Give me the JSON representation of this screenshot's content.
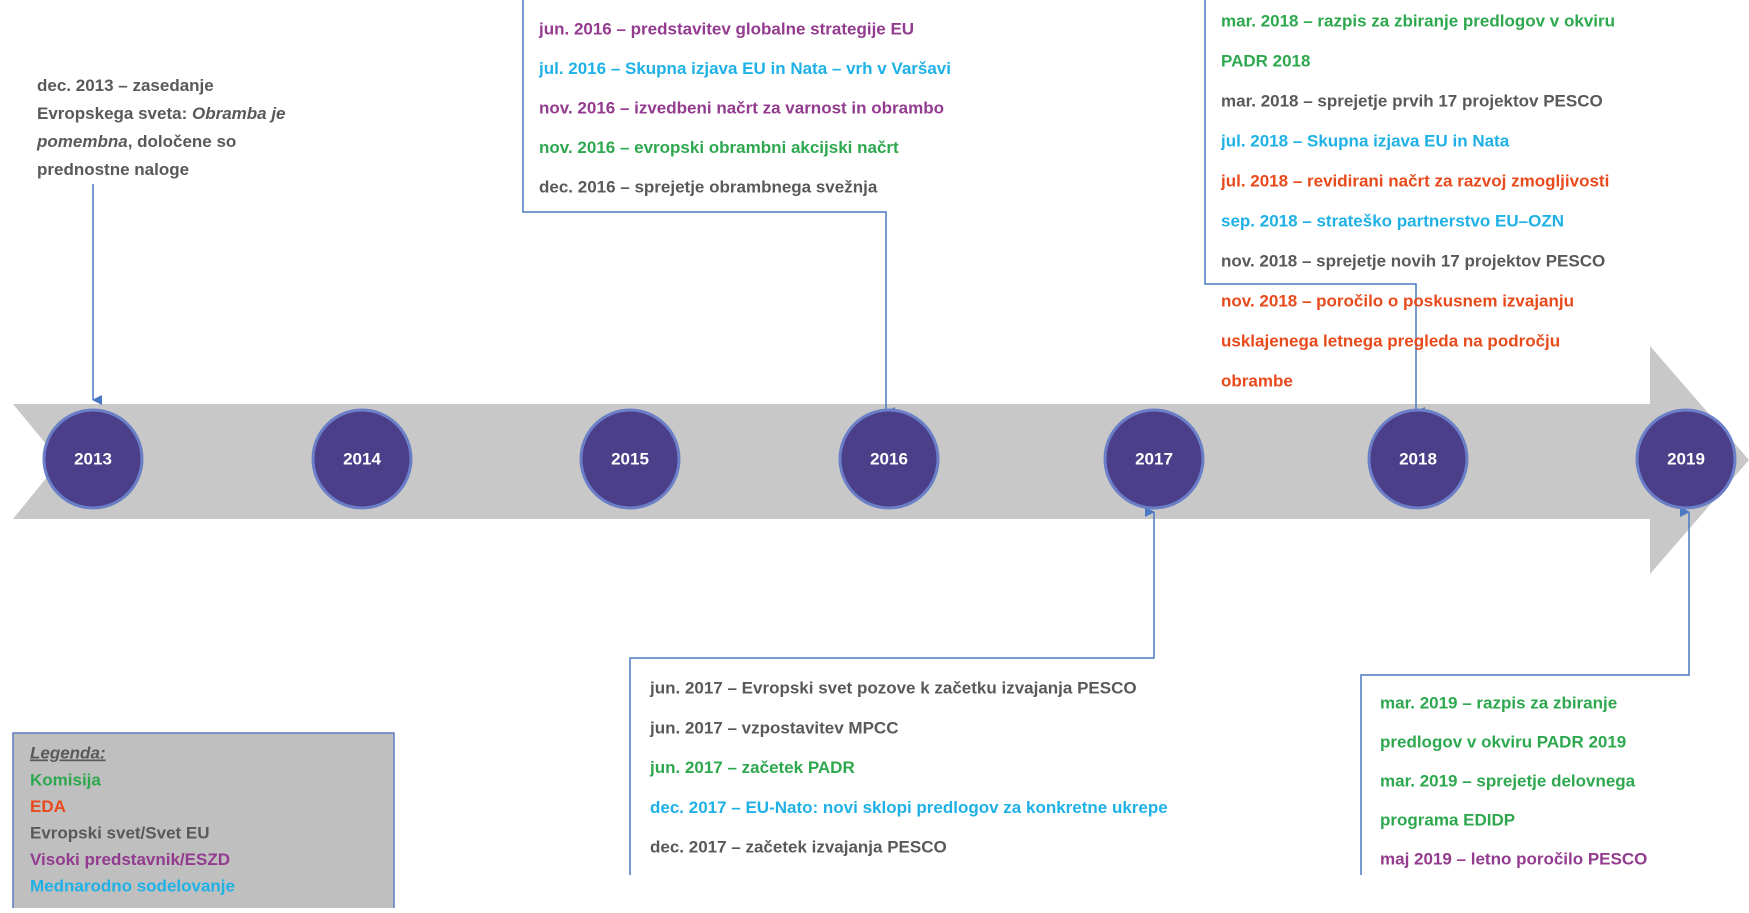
{
  "years": [
    "2013",
    "2014",
    "2015",
    "2016",
    "2017",
    "2018",
    "2019"
  ],
  "groups": [
    {
      "lines": [
        {
          "color": "#595959",
          "runs": [
            {
              "text": "dec. 2013 – zasedanje"
            }
          ]
        },
        {
          "color": "#595959",
          "runs": [
            {
              "text": "Evropskega sveta: "
            },
            {
              "text": "Obramba je",
              "italic": true
            }
          ]
        },
        {
          "color": "#595959",
          "runs": [
            {
              "text": "pomembna",
              "italic": true
            },
            {
              "text": ", določene so"
            }
          ]
        },
        {
          "color": "#595959",
          "runs": [
            {
              "text": "prednostne naloge"
            }
          ]
        }
      ]
    },
    {
      "lines": [
        {
          "color": "#933b8f",
          "text": "jun. 2016 – predstavitev globalne strategije EU"
        },
        {
          "color": "#1fb1e6",
          "text": "jul. 2016 – Skupna izjava EU in Nata – vrh v Varšavi"
        },
        {
          "color": "#933b8f",
          "text": "nov. 2016 – izvedbeni načrt za varnost in obrambo"
        },
        {
          "color": "#2ea84f",
          "text": "nov. 2016 – evropski obrambni akcijski načrt"
        },
        {
          "color": "#595959",
          "text": "dec. 2016 – sprejetje obrambnega svežnja"
        }
      ]
    },
    {
      "lines": [
        {
          "color": "#2ea84f",
          "text": "mar. 2018 – razpis za zbiranje predlogov v okviru"
        },
        {
          "color": "#2ea84f",
          "text": "PADR 2018"
        },
        {
          "color": "#595959",
          "text": "mar. 2018 – sprejetje prvih 17 projektov PESCO"
        },
        {
          "color": "#1fb1e6",
          "text": "jul. 2018 – Skupna izjava EU in Nata"
        },
        {
          "color": "#e84a1b",
          "text": "jul. 2018 – revidirani načrt za razvoj zmogljivosti"
        },
        {
          "color": "#1fb1e6",
          "text": "sep. 2018 – strateško partnerstvo EU–OZN"
        },
        {
          "color": "#595959",
          "text": "nov. 2018 – sprejetje novih 17 projektov PESCO"
        },
        {
          "color": "#e84a1b",
          "text": "nov. 2018 – poročilo o poskusnem izvajanju"
        },
        {
          "color": "#e84a1b",
          "text": "usklajenega letnega pregleda na področju"
        },
        {
          "color": "#e84a1b",
          "text": "obrambe"
        }
      ]
    },
    {
      "lines": [
        {
          "color": "#595959",
          "text": "jun. 2017 – Evropski svet pozove k začetku izvajanja  PESCO"
        },
        {
          "color": "#595959",
          "text": "jun. 2017 – vzpostavitev MPCC"
        },
        {
          "color": "#2ea84f",
          "text": "jun. 2017 – začetek PADR"
        },
        {
          "color": "#1fb1e6",
          "text": "dec. 2017 – EU-Nato: novi sklopi predlogov za konkretne ukrepe"
        },
        {
          "color": "#595959",
          "text": "dec. 2017 – začetek izvajanja  PESCO"
        }
      ]
    },
    {
      "lines": [
        {
          "color": "#2ea84f",
          "text": "mar. 2019 – razpis za zbiranje"
        },
        {
          "color": "#2ea84f",
          "text": "predlogov v okviru PADR 2019"
        },
        {
          "color": "#2ea84f",
          "text": "mar. 2019 – sprejetje delovnega"
        },
        {
          "color": "#2ea84f",
          "text": "programa EDIDP"
        },
        {
          "color": "#933b8f",
          "text": "maj 2019 – letno poročilo PESCO"
        }
      ]
    }
  ],
  "legend": {
    "title": "Legenda:",
    "items": [
      {
        "label": "Komisija",
        "color": "#2ea84f"
      },
      {
        "label": "EDA",
        "color": "#e84a1b"
      },
      {
        "label": "Evropski svet/Svet EU",
        "color": "#595959"
      },
      {
        "label": "Visoki predstavnik/ESZD",
        "color": "#933b8f"
      },
      {
        "label": "Mednarodno sodelovanje",
        "color": "#1fb1e6"
      }
    ]
  }
}
